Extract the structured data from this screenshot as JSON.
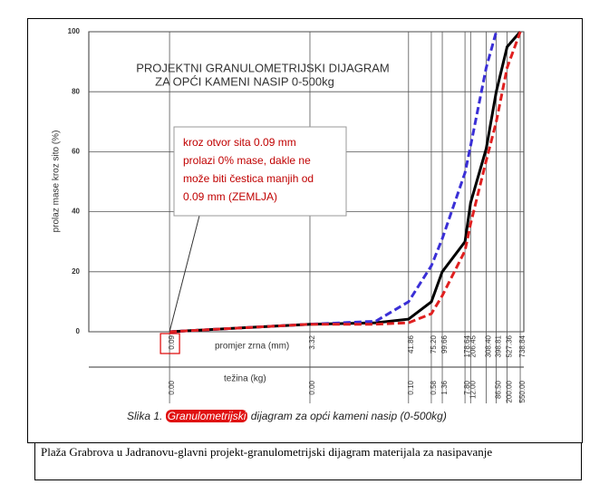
{
  "chart_data": {
    "type": "line",
    "title": [
      "PROJEKTNI GRANULOMETRIJSKI DIJAGRAM",
      "ZA OPĆI KAMENI NASIP 0-500kg"
    ],
    "y_label": "prolaz mase kroz sito (%)",
    "x_label": "promjer zrna (mm)",
    "x2_label": "težina (kg)",
    "x_scale": "log",
    "xlim": [
      0.0113,
      810
    ],
    "ylim": [
      0,
      100
    ],
    "yticks": [
      0,
      20,
      40,
      60,
      80,
      100
    ],
    "xticks": [
      0.09,
      3.32,
      41.86,
      {
        "value": 75.2,
        "label": "75.20"
      },
      99.66,
      178.64,
      206.45,
      {
        "value": 308.4,
        "label": "308.40"
      },
      398.81,
      527.36,
      738.84
    ],
    "x2ticks": [
      {
        "value": 0,
        "label": "0.00"
      },
      {
        "value": 0,
        "label": "0.00"
      },
      {
        "value": 0.1,
        "label": "0.10"
      },
      0.58,
      1.36,
      {
        "value": 7.8,
        "label": "7.80"
      },
      {
        "value": 12,
        "label": "12.00"
      },
      null,
      {
        "value": 86.5,
        "label": "86.50"
      },
      {
        "value": 200,
        "label": "200.00"
      },
      {
        "value": 550,
        "label": "550.00"
      }
    ],
    "grid": true,
    "x": [
      0.09,
      3.32,
      18,
      41.86,
      75.2,
      99.66,
      178.64,
      206.45,
      308.4,
      398.81,
      527.36,
      738.84
    ],
    "series": [
      {
        "color": "#000000",
        "style": "solid",
        "values": [
          0,
          2.5,
          3,
          4.2,
          10,
          20,
          30,
          43,
          61,
          80,
          95,
          100
        ]
      },
      {
        "color": "#3a2fd6",
        "style": "dashed",
        "values": [
          0,
          2.5,
          3.5,
          10,
          22,
          31,
          53,
          62,
          88,
          100,
          null,
          null
        ]
      },
      {
        "color": "#e02020",
        "style": "dashed",
        "values": [
          0,
          2.5,
          2.5,
          3,
          6,
          12,
          27,
          36,
          57,
          70,
          88,
          100
        ]
      }
    ],
    "annotation": [
      "kroz otvor sita 0.09 mm",
      "prolazi 0% mase, dakle ne",
      "može biti čestica manjih od",
      "0.09 mm (ZEMLJA)"
    ],
    "figure_caption": {
      "prefix": "Slika 1. ",
      "highlight": "Granulometrijski",
      "suffix": " dijagram za opći kameni nasip (0-500kg)"
    }
  },
  "caption": "Plaža Grabrova u Jadranovu-glavni projekt-granulometrijski  dijagram materijala za nasipavanje"
}
